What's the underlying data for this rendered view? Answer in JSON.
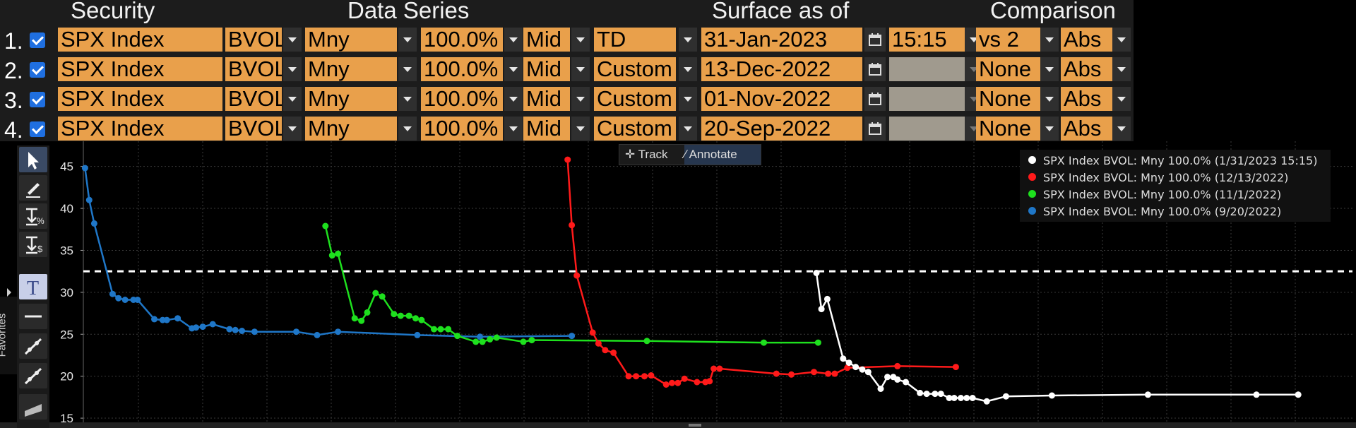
{
  "headers": {
    "security": "Security",
    "data_series": "Data Series",
    "surface": "Surface as of",
    "comparison": "Comparison"
  },
  "rows": [
    {
      "num": "1.",
      "security": "SPX Index",
      "field": "BVOL",
      "mode": "Mny",
      "moneyness": "100.0%",
      "side": "Mid",
      "range": "TD",
      "date": "31-Jan-2023",
      "time": "15:15",
      "compare": "vs 2",
      "calc": "Abs"
    },
    {
      "num": "2.",
      "security": "SPX Index",
      "field": "BVOL",
      "mode": "Mny",
      "moneyness": "100.0%",
      "side": "Mid",
      "range": "Custom",
      "date": "13-Dec-2022",
      "time": "",
      "compare": "None",
      "calc": "Abs"
    },
    {
      "num": "3.",
      "security": "SPX Index",
      "field": "BVOL",
      "mode": "Mny",
      "moneyness": "100.0%",
      "side": "Mid",
      "range": "Custom",
      "date": "01-Nov-2022",
      "time": "",
      "compare": "None",
      "calc": "Abs"
    },
    {
      "num": "4.",
      "security": "SPX Index",
      "field": "BVOL",
      "mode": "Mny",
      "moneyness": "100.0%",
      "side": "Mid",
      "range": "Custom",
      "date": "20-Sep-2022",
      "time": "",
      "compare": "None",
      "calc": "Abs"
    }
  ],
  "chart_toolbar": {
    "track": "Track",
    "annotate": "Annotate"
  },
  "sidebar": {
    "favorites": "Favorites",
    "tools": [
      "pointer-icon",
      "pen-icon",
      "percent-tool-icon",
      "dollar-tool-icon",
      "text-tool-icon",
      "horizontal-line-icon",
      "trend-line-icon",
      "channel-icon",
      "rectangle-icon"
    ]
  },
  "legend": [
    {
      "label": "SPX Index BVOL: Mny 100.0% (1/31/2023 15:15)",
      "color": "#ffffff"
    },
    {
      "label": "SPX Index BVOL: Mny 100.0% (12/13/2022)",
      "color": "#ff1a1a"
    },
    {
      "label": "SPX Index BVOL: Mny 100.0% (11/1/2022)",
      "color": "#1ee01e"
    },
    {
      "label": "SPX Index BVOL: Mny 100.0% (9/20/2022)",
      "color": "#1f77c8"
    }
  ],
  "chart_data": {
    "type": "line",
    "x_unit": "days",
    "xlim": [
      0,
      1520
    ],
    "ylim": [
      14.5,
      48
    ],
    "yticks": [
      15,
      20,
      25,
      30,
      35,
      40,
      45
    ],
    "grid": true,
    "legend_position": "top-right",
    "reference_line": 32.5,
    "series": [
      {
        "name": "SPX Index BVOL: Mny 100.0% (9/20/2022)",
        "color": "#1f77c8",
        "points": [
          [
            2,
            44.8
          ],
          [
            7,
            41
          ],
          [
            13,
            38.2
          ],
          [
            35,
            29.8
          ],
          [
            42,
            29.3
          ],
          [
            50,
            29.1
          ],
          [
            60,
            29.1
          ],
          [
            65,
            29.1
          ],
          [
            85,
            26.8
          ],
          [
            95,
            26.7
          ],
          [
            100,
            26.7
          ],
          [
            113,
            26.9
          ],
          [
            130,
            25.7
          ],
          [
            135,
            25.8
          ],
          [
            143,
            25.9
          ],
          [
            155,
            26.2
          ],
          [
            175,
            25.6
          ],
          [
            182,
            25.5
          ],
          [
            190,
            25.4
          ],
          [
            205,
            25.3
          ],
          [
            255,
            25.3
          ],
          [
            280,
            24.9
          ],
          [
            305,
            25.3
          ],
          [
            400,
            24.9
          ],
          [
            475,
            24.7
          ],
          [
            585,
            24.8
          ]
        ]
      },
      {
        "name": "SPX Index BVOL: Mny 100.0% (11/1/2022)",
        "color": "#1ee01e",
        "points": [
          [
            290,
            37.9
          ],
          [
            298,
            34.4
          ],
          [
            305,
            34.6
          ],
          [
            325,
            26.9
          ],
          [
            333,
            26.6
          ],
          [
            340,
            27.6
          ],
          [
            350,
            29.9
          ],
          [
            358,
            29.5
          ],
          [
            372,
            27.4
          ],
          [
            380,
            27.2
          ],
          [
            390,
            27.2
          ],
          [
            398,
            26.9
          ],
          [
            405,
            26.7
          ],
          [
            420,
            25.6
          ],
          [
            428,
            25.6
          ],
          [
            437,
            25.6
          ],
          [
            448,
            24.8
          ],
          [
            470,
            24.1
          ],
          [
            478,
            24.1
          ],
          [
            487,
            24.4
          ],
          [
            495,
            24.6
          ],
          [
            527,
            24.1
          ],
          [
            537,
            24.3
          ],
          [
            675,
            24.2
          ],
          [
            815,
            24
          ],
          [
            880,
            24
          ]
        ]
      },
      {
        "name": "SPX Index BVOL: Mny 100.0% (12/13/2022)",
        "color": "#ff1a1a",
        "points": [
          [
            580,
            45.8
          ],
          [
            585,
            38
          ],
          [
            591,
            32
          ],
          [
            610,
            25.2
          ],
          [
            617,
            23.9
          ],
          [
            625,
            23.1
          ],
          [
            635,
            22.8
          ],
          [
            653,
            20
          ],
          [
            662,
            20
          ],
          [
            672,
            20
          ],
          [
            680,
            20.1
          ],
          [
            698,
            19
          ],
          [
            705,
            19.2
          ],
          [
            712,
            19.2
          ],
          [
            720,
            19.7
          ],
          [
            735,
            19.3
          ],
          [
            745,
            19.3
          ],
          [
            750,
            19.4
          ],
          [
            755,
            20.9
          ],
          [
            762,
            20.9
          ],
          [
            830,
            20.3
          ],
          [
            848,
            20.2
          ],
          [
            875,
            20.5
          ],
          [
            892,
            20.3
          ],
          [
            900,
            20.3
          ],
          [
            915,
            21
          ],
          [
            975,
            21.2
          ],
          [
            1045,
            21.1
          ]
        ]
      },
      {
        "name": "SPX Index BVOL: Mny 100.0% (1/31/2023 15:15)",
        "color": "#ffffff",
        "points": [
          [
            878,
            32.3
          ],
          [
            884,
            28
          ],
          [
            891,
            29.2
          ],
          [
            910,
            22.1
          ],
          [
            917,
            21.6
          ],
          [
            925,
            21.1
          ],
          [
            933,
            20.8
          ],
          [
            940,
            20.5
          ],
          [
            955,
            18.5
          ],
          [
            963,
            19.9
          ],
          [
            970,
            19.9
          ],
          [
            975,
            19.6
          ],
          [
            985,
            19.3
          ],
          [
            1002,
            18
          ],
          [
            1010,
            17.9
          ],
          [
            1020,
            17.9
          ],
          [
            1027,
            17.9
          ],
          [
            1037,
            17.4
          ],
          [
            1043,
            17.4
          ],
          [
            1051,
            17.4
          ],
          [
            1058,
            17.4
          ],
          [
            1065,
            17.4
          ],
          [
            1082,
            17
          ],
          [
            1105,
            17.6
          ],
          [
            1160,
            17.7
          ],
          [
            1275,
            17.8
          ],
          [
            1405,
            17.8
          ],
          [
            1455,
            17.8
          ]
        ]
      }
    ]
  }
}
